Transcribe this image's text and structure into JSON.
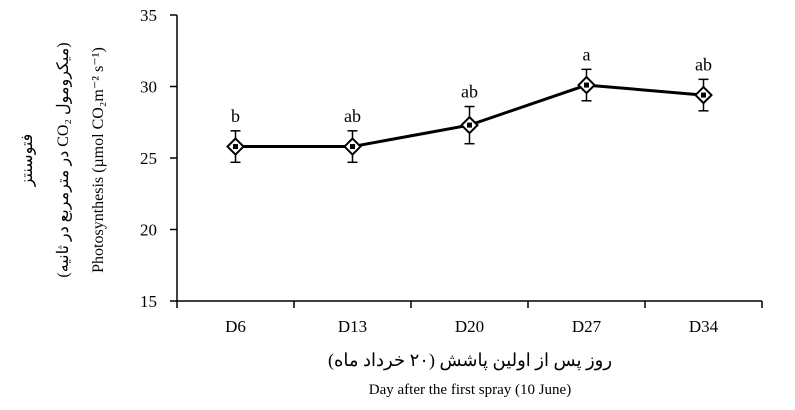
{
  "chart_data": {
    "type": "line",
    "categories": [
      "D6",
      "D13",
      "D20",
      "D27",
      "D34"
    ],
    "series": [
      {
        "values": [
          25.8,
          25.8,
          27.3,
          30.1,
          29.4
        ],
        "error": [
          1.1,
          1.1,
          1.3,
          1.1,
          1.1
        ],
        "significance": [
          "b",
          "ab",
          "ab",
          "a",
          "ab"
        ]
      }
    ],
    "y_ticks": [
      "15",
      "20",
      "25",
      "30",
      "35"
    ],
    "ylim": [
      15,
      35
    ],
    "xlabel_fa": "روز پس از اولین پاشش (۲۰ خرداد ماه)",
    "xlabel_en": "Day after the first spray (10 June)",
    "ylabel_fa_1": "فتوسنتز",
    "ylabel_fa_2": "(میکرومول CO₂ در مترمربع در ثانیه)",
    "ylabel_en": "Photosynthesis (µmol CO₂m⁻² s⁻¹)",
    "grid": false,
    "legend": "none",
    "colors": {
      "line": "#000000",
      "marker_fill": "#ffffff"
    }
  }
}
